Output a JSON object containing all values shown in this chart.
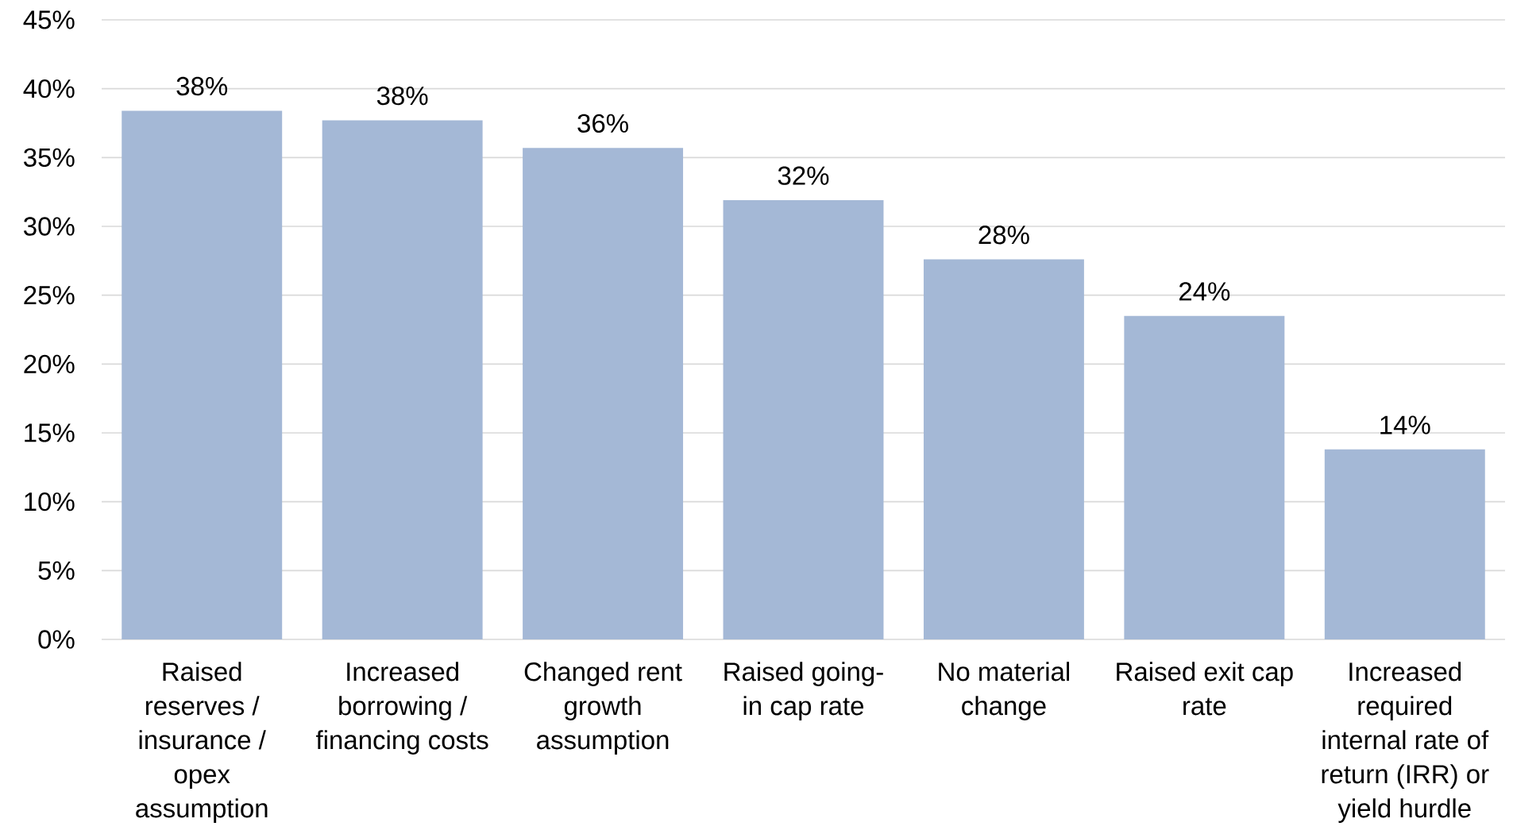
{
  "chart_data": {
    "type": "bar",
    "categories": [
      "Raised reserves / insurance / opex assumption",
      "Increased borrowing / financing costs",
      "Changed rent growth assumption",
      "Raised going-in cap rate",
      "No material change",
      "Raised exit cap rate",
      "Increased required internal rate of return (IRR) or yield hurdle"
    ],
    "values": [
      38.4,
      37.7,
      35.7,
      31.9,
      27.6,
      23.5,
      13.8
    ],
    "value_labels": [
      "38%",
      "38%",
      "36%",
      "32%",
      "28%",
      "24%",
      "14%"
    ],
    "color": "#a4b8d6",
    "ylim": [
      0,
      45
    ],
    "yticks": [
      {
        "value": 0,
        "label": "0%"
      },
      {
        "value": 5,
        "label": "5%"
      },
      {
        "value": 10,
        "label": "10%"
      },
      {
        "value": 15,
        "label": "15%"
      },
      {
        "value": 20,
        "label": "20%"
      },
      {
        "value": 25,
        "label": "25%"
      },
      {
        "value": 30,
        "label": "30%"
      },
      {
        "value": 35,
        "label": "35%"
      },
      {
        "value": 40,
        "label": "40%"
      },
      {
        "value": 45,
        "label": "45%"
      }
    ],
    "grid": "y"
  }
}
